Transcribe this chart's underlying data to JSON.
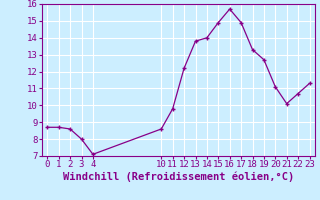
{
  "x": [
    0,
    1,
    2,
    3,
    4,
    10,
    11,
    12,
    13,
    14,
    15,
    16,
    17,
    18,
    19,
    20,
    21,
    22,
    23
  ],
  "y": [
    8.7,
    8.7,
    8.6,
    8.0,
    7.1,
    8.6,
    9.8,
    12.2,
    13.8,
    14.0,
    14.9,
    15.7,
    14.9,
    13.3,
    12.7,
    11.1,
    10.1,
    10.7,
    11.3
  ],
  "line_color": "#880088",
  "marker": "+",
  "bg_color": "#cceeff",
  "grid_color": "#ffffff",
  "xlabel": "Windchill (Refroidissement éolien,°C)",
  "xlabel_color": "#880088",
  "tick_color": "#880088",
  "spine_color": "#880088",
  "ylim": [
    7,
    16
  ],
  "yticks": [
    7,
    8,
    9,
    10,
    11,
    12,
    13,
    14,
    15,
    16
  ],
  "xticks": [
    0,
    1,
    2,
    3,
    4,
    10,
    11,
    12,
    13,
    14,
    15,
    16,
    17,
    18,
    19,
    20,
    21,
    22,
    23
  ],
  "tick_fontsize": 6.5,
  "xlabel_fontsize": 7.5
}
